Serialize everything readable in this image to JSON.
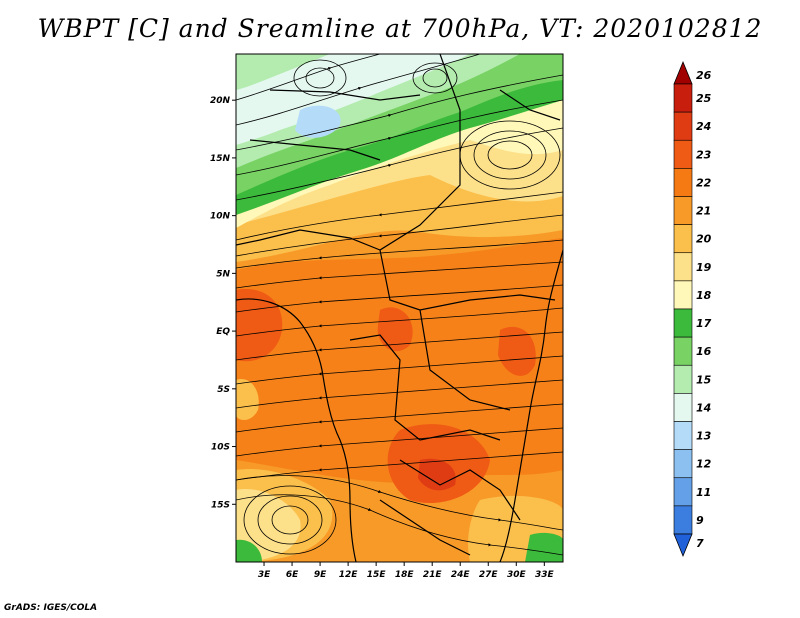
{
  "title": "WBPT [C] and Sreamline at 700hPa, VT: 2020102812",
  "credit": "GrADS: IGES/COLA",
  "map": {
    "lon_range": [
      0,
      35
    ],
    "lat_range": [
      -20,
      24
    ],
    "lat_ticks": [
      {
        "value": 20,
        "label": "20N"
      },
      {
        "value": 15,
        "label": "15N"
      },
      {
        "value": 10,
        "label": "10N"
      },
      {
        "value": 5,
        "label": "5N"
      },
      {
        "value": 0,
        "label": "EQ"
      },
      {
        "value": -5,
        "label": "5S"
      },
      {
        "value": -10,
        "label": "10S"
      },
      {
        "value": -15,
        "label": "15S"
      }
    ],
    "lon_ticks": [
      {
        "value": 3,
        "label": "3E"
      },
      {
        "value": 6,
        "label": "6E"
      },
      {
        "value": 9,
        "label": "9E"
      },
      {
        "value": 12,
        "label": "12E"
      },
      {
        "value": 15,
        "label": "15E"
      },
      {
        "value": 18,
        "label": "18E"
      },
      {
        "value": 21,
        "label": "21E"
      },
      {
        "value": 24,
        "label": "24E"
      },
      {
        "value": 27,
        "label": "27E"
      },
      {
        "value": 30,
        "label": "30E"
      },
      {
        "value": 33,
        "label": "33E"
      }
    ]
  },
  "colorbar": {
    "levels": [
      "26",
      "25",
      "24",
      "23",
      "22",
      "21",
      "20",
      "19",
      "18",
      "17",
      "16",
      "15",
      "14",
      "13",
      "12",
      "11",
      "9",
      "7"
    ],
    "colors": [
      "#a00000",
      "#c81e0e",
      "#e03c14",
      "#ef5a14",
      "#f57a14",
      "#f89a28",
      "#fbbf4c",
      "#fde08a",
      "#fff8b8",
      "#3cba3c",
      "#78d264",
      "#b4ecb0",
      "#e4f8f0",
      "#b4dcf8",
      "#8cc0f0",
      "#64a0e8",
      "#3c7ee0",
      "#2060d8"
    ]
  }
}
